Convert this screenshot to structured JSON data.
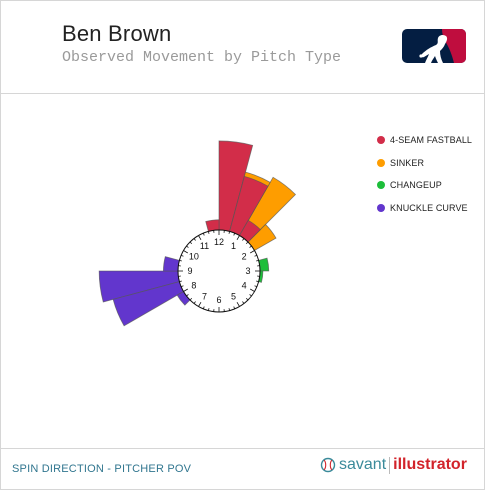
{
  "header": {
    "title": "Ben Brown",
    "subtitle": "Observed Movement by Pitch Type"
  },
  "footer": {
    "label": "SPIN DIRECTION - PITCHER POV",
    "brand_left": "savant",
    "brand_right": "illustrator"
  },
  "icons": {
    "logo": "mlb-logo-icon",
    "brand": "baseball-icon"
  },
  "colors": {
    "four_seam": "#d22d49",
    "sinker": "#fe9d00",
    "changeup": "#1dbe3a",
    "knuckle_curve": "#6236cd",
    "logo_blue": "#041e42",
    "logo_red": "#bf0d3e",
    "footer_text": "#31768f"
  },
  "chart_data": {
    "type": "polar-bar",
    "axis": "clock",
    "clock_labels": [
      "12",
      "1",
      "2",
      "3",
      "4",
      "5",
      "6",
      "7",
      "8",
      "9",
      "10",
      "11"
    ],
    "series": [
      {
        "name": "4-SEAM FASTBALL",
        "color": "#d22d49",
        "bins": [
          {
            "clock_start": 11.5,
            "clock_end": 12.0,
            "value": 0.7
          },
          {
            "clock_start": 12.0,
            "clock_end": 12.5,
            "value": 6.1
          },
          {
            "clock_start": 12.5,
            "clock_end": 1.0,
            "value": 3.9
          },
          {
            "clock_start": 1.0,
            "clock_end": 1.5,
            "value": 1.2
          }
        ]
      },
      {
        "name": "SINKER",
        "color": "#fe9d00",
        "bins": [
          {
            "clock_start": 12.5,
            "clock_end": 1.0,
            "value": 4.2
          },
          {
            "clock_start": 1.0,
            "clock_end": 1.5,
            "value": 4.6
          },
          {
            "clock_start": 1.5,
            "clock_end": 2.0,
            "value": 1.7
          }
        ]
      },
      {
        "name": "CHANGEUP",
        "color": "#1dbe3a",
        "bins": [
          {
            "clock_start": 2.5,
            "clock_end": 3.0,
            "value": 0.6
          },
          {
            "clock_start": 3.0,
            "clock_end": 3.5,
            "value": 0.2
          }
        ]
      },
      {
        "name": "KNUCKLE CURVE",
        "color": "#6236cd",
        "bins": [
          {
            "clock_start": 7.5,
            "clock_end": 8.0,
            "value": 0.5
          },
          {
            "clock_start": 8.0,
            "clock_end": 8.5,
            "value": 4.7
          },
          {
            "clock_start": 8.5,
            "clock_end": 9.0,
            "value": 5.4
          },
          {
            "clock_start": 9.0,
            "clock_end": 9.5,
            "value": 1.0
          }
        ]
      }
    ],
    "legend": [
      "4-SEAM FASTBALL",
      "SINKER",
      "CHANGEUP",
      "KNUCKLE CURVE"
    ],
    "legend_position": "top-right"
  }
}
